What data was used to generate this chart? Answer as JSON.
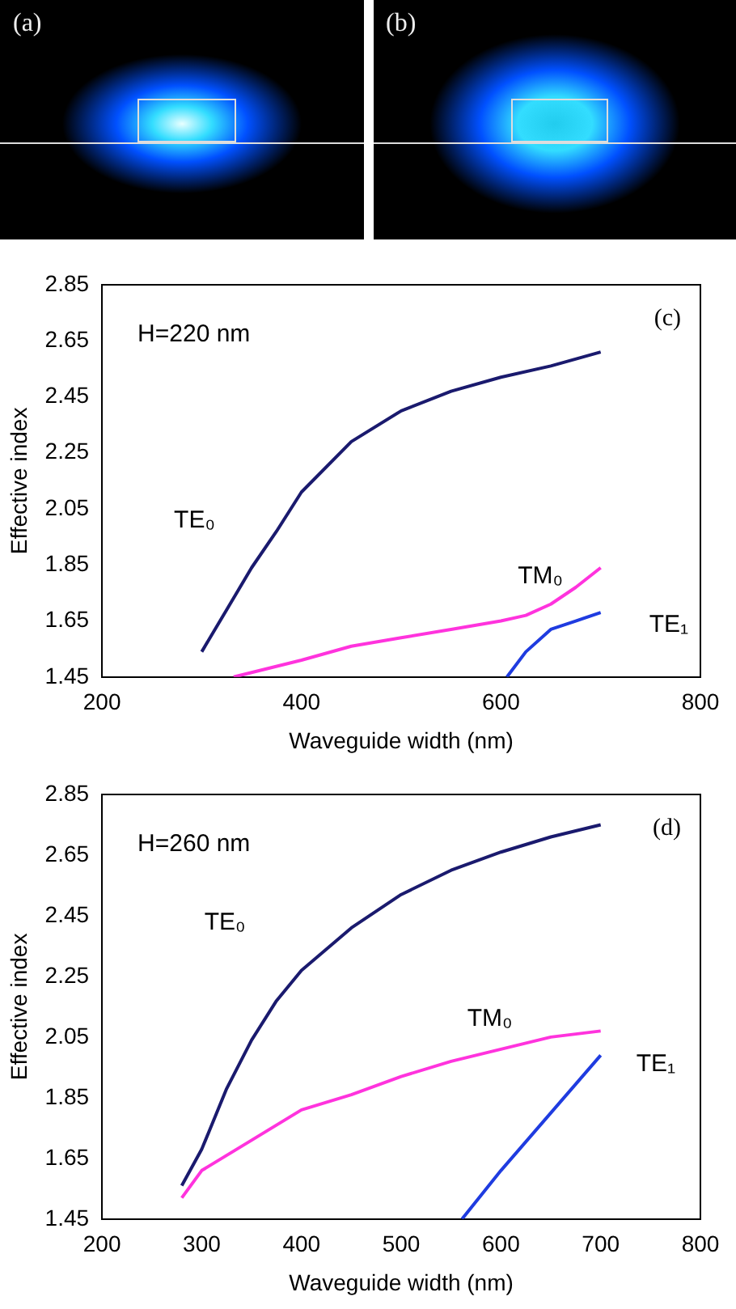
{
  "chart_data": [
    {
      "type": "other",
      "annotations": [
        "(a)",
        "(b)"
      ]
    },
    {
      "type": "line",
      "xlabel": "Waveguide width (nm)",
      "ylabel": "Effective index",
      "annotations": [
        "H=220 nm",
        "(c)"
      ],
      "xlim": [
        200,
        800
      ],
      "xticks": [
        200,
        400,
        600,
        800
      ],
      "ylim": [
        1.45,
        2.85
      ],
      "yticks": [
        1.45,
        1.65,
        1.85,
        2.05,
        2.25,
        2.45,
        2.65,
        2.85
      ],
      "grid": false,
      "legend": false,
      "series": [
        {
          "name": "TE₀",
          "color": "#1a1a6e",
          "x": [
            300,
            325,
            350,
            375,
            400,
            450,
            500,
            550,
            600,
            650,
            700
          ],
          "values": [
            1.54,
            1.69,
            1.84,
            1.97,
            2.11,
            2.29,
            2.4,
            2.47,
            2.52,
            2.56,
            2.61
          ]
        },
        {
          "name": "TM₀",
          "color": "#ff33dd",
          "x": [
            332,
            400,
            450,
            500,
            550,
            600,
            625,
            650,
            675,
            700
          ],
          "values": [
            1.45,
            1.51,
            1.56,
            1.59,
            1.62,
            1.65,
            1.67,
            1.71,
            1.77,
            1.84
          ]
        },
        {
          "name": "TE₁",
          "color": "#1f3ce0",
          "x": [
            606,
            625,
            650,
            675,
            700
          ],
          "values": [
            1.45,
            1.54,
            1.62,
            1.65,
            1.68
          ]
        }
      ]
    },
    {
      "type": "line",
      "xlabel": "Waveguide width (nm)",
      "ylabel": "Effective index",
      "annotations": [
        "H=260 nm",
        "(d)"
      ],
      "xlim": [
        200,
        800
      ],
      "xticks": [
        200,
        300,
        400,
        500,
        600,
        700,
        800
      ],
      "ylim": [
        1.45,
        2.85
      ],
      "yticks": [
        1.45,
        1.65,
        1.85,
        2.05,
        2.25,
        2.45,
        2.65,
        2.85
      ],
      "grid": false,
      "legend": false,
      "series": [
        {
          "name": "TE₀",
          "color": "#1a1a6e",
          "x": [
            280,
            300,
            325,
            350,
            375,
            400,
            450,
            500,
            550,
            600,
            650,
            700
          ],
          "values": [
            1.56,
            1.68,
            1.88,
            2.04,
            2.17,
            2.27,
            2.41,
            2.52,
            2.6,
            2.66,
            2.71,
            2.75
          ]
        },
        {
          "name": "TM₀",
          "color": "#ff33dd",
          "x": [
            280,
            300,
            350,
            400,
            450,
            500,
            550,
            600,
            650,
            700
          ],
          "values": [
            1.52,
            1.61,
            1.71,
            1.81,
            1.86,
            1.92,
            1.97,
            2.01,
            2.05,
            2.07
          ]
        },
        {
          "name": "TE₁",
          "color": "#1f3ce0",
          "x": [
            561,
            600,
            650,
            700
          ],
          "values": [
            1.45,
            1.61,
            1.8,
            1.99
          ]
        }
      ]
    }
  ]
}
